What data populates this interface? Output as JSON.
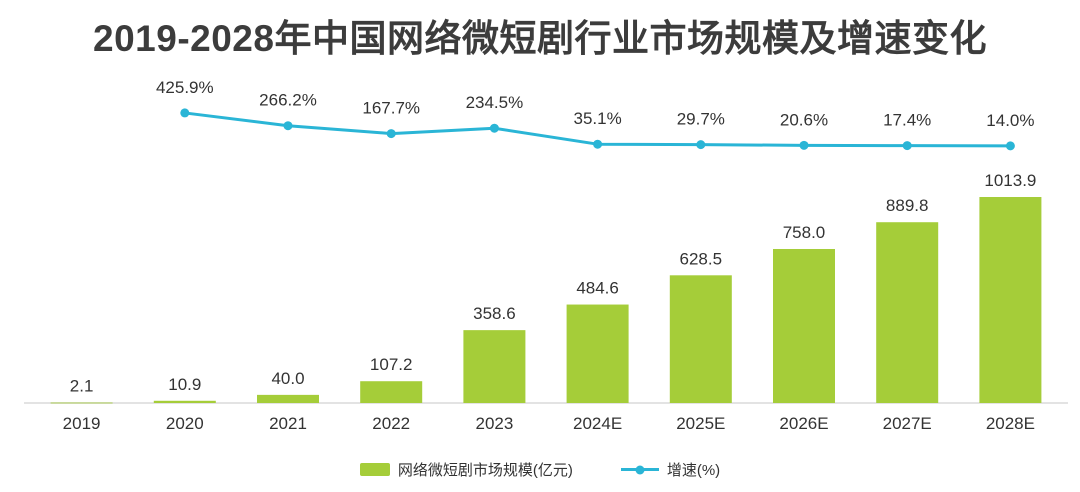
{
  "title": "2019-2028年中国网络微短剧行业市场规模及增速变化",
  "colors": {
    "bar": "#a5cd39",
    "line": "#2ab5d6",
    "title": "#3c3c3c",
    "label": "#333333",
    "axis": "#e3e3e3"
  },
  "legend": {
    "bar_label": "网络微短剧市场规模(亿元)",
    "line_label": "增速(%)"
  },
  "chart_data": {
    "type": "bar+line",
    "title": "2019-2028年中国网络微短剧行业市场规模及增速变化",
    "categories": [
      "2019",
      "2020",
      "2021",
      "2022",
      "2023",
      "2024E",
      "2025E",
      "2026E",
      "2027E",
      "2028E"
    ],
    "series": [
      {
        "name": "网络微短剧市场规模(亿元)",
        "type": "bar",
        "values": [
          2.1,
          10.9,
          40.0,
          107.2,
          358.6,
          484.6,
          628.5,
          758.0,
          889.8,
          1013.9
        ]
      },
      {
        "name": "增速(%)",
        "type": "line",
        "values": [
          null,
          425.9,
          266.2,
          167.7,
          234.5,
          35.1,
          29.7,
          20.6,
          17.4,
          14.0
        ]
      }
    ],
    "bar_value_labels": [
      "2.1",
      "10.9",
      "40.0",
      "107.2",
      "358.6",
      "484.6",
      "628.5",
      "758.0",
      "889.8",
      "1013.9"
    ],
    "line_value_labels": [
      "",
      "425.9%",
      "266.2%",
      "167.7%",
      "234.5%",
      "35.1%",
      "29.7%",
      "20.6%",
      "17.4%",
      "14.0%"
    ],
    "xlabel": "",
    "ylabel_left": "市场规模(亿元)",
    "ylabel_right": "增速(%)",
    "ylim_left": [
      0,
      1060
    ],
    "grid": false,
    "legend_position": "bottom"
  }
}
